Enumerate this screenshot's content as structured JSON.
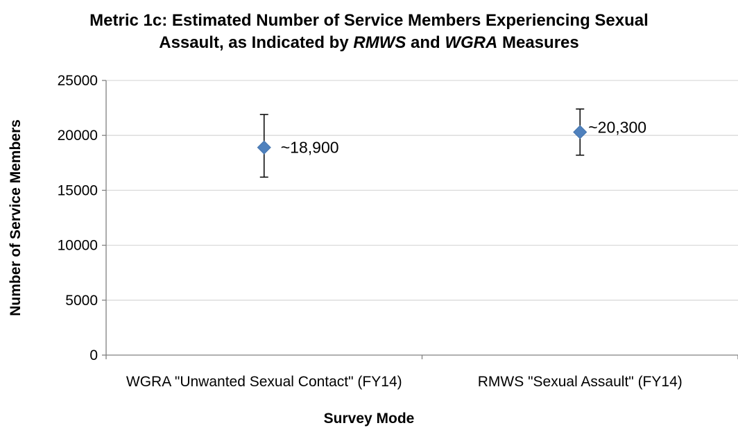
{
  "chart_data": {
    "type": "scatter",
    "title_parts": [
      {
        "text": "Metric 1c: Estimated Number of Service Members Experiencing Sexual",
        "italic": false,
        "br": true
      },
      {
        "text": "Assault, as Indicated by ",
        "italic": false
      },
      {
        "text": "RMWS",
        "italic": true
      },
      {
        "text": " and ",
        "italic": false
      },
      {
        "text": "WGRA",
        "italic": true
      },
      {
        "text": " Measures",
        "italic": false
      }
    ],
    "xlabel": "Survey Mode",
    "ylabel": "Number of Service Members",
    "ylim": [
      0,
      25000
    ],
    "yticks": [
      0,
      5000,
      10000,
      15000,
      20000,
      25000
    ],
    "categories": [
      "WGRA \"Unwanted Sexual Contact\" (FY14)",
      "RMWS \"Sexual Assault\" (FY14)"
    ],
    "values": [
      18900,
      20300
    ],
    "error_low": [
      16200,
      18200
    ],
    "error_high": [
      21900,
      22400
    ],
    "data_labels": [
      "~18,900",
      "~20,300"
    ],
    "grid": true,
    "marker": "diamond",
    "colors": {
      "marker": "#4F81BD",
      "grid": "#D9D9D9",
      "axis": "#808080",
      "error": "#000000"
    }
  }
}
